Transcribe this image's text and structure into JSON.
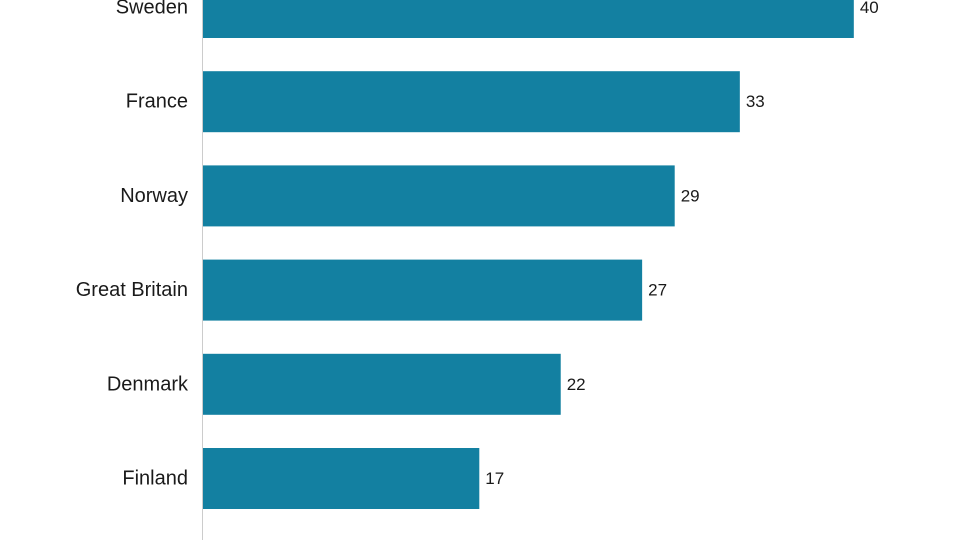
{
  "chart_data": {
    "type": "bar",
    "orientation": "horizontal",
    "categories": [
      "Sweden",
      "France",
      "Norway",
      "Great Britain",
      "Denmark",
      "Finland"
    ],
    "values": [
      40,
      33,
      29,
      27,
      22,
      17
    ],
    "title": "",
    "xlabel": "",
    "ylabel": "",
    "xlim": [
      0,
      45.6
    ],
    "grid": false,
    "legend": "none",
    "bar_color": "#1380a1",
    "axis_color": "#cccccc",
    "data_labels": true
  }
}
